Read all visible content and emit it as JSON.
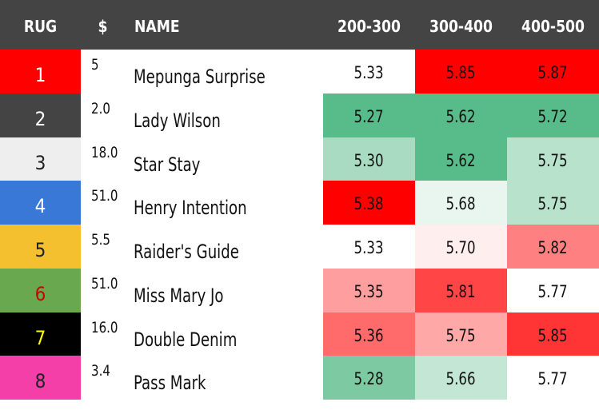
{
  "headers": {
    "rug": "RUG",
    "price": "$",
    "name": "NAME",
    "col1": "200-300",
    "col2": "300-400",
    "col3": "400-500"
  },
  "chart_data": {
    "type": "table",
    "columns": [
      "RUG",
      "$",
      "NAME",
      "200-300",
      "300-400",
      "400-500"
    ],
    "rows": [
      {
        "rug": "1",
        "price": "5",
        "name": "Mepunga Surprise",
        "values": [
          "5.33",
          "5.85",
          "5.87"
        ]
      },
      {
        "rug": "2",
        "price": "2.0",
        "name": "Lady Wilson",
        "values": [
          "5.27",
          "5.62",
          "5.72"
        ]
      },
      {
        "rug": "3",
        "price": "18.0",
        "name": "Star Stay",
        "values": [
          "5.30",
          "5.62",
          "5.75"
        ]
      },
      {
        "rug": "4",
        "price": "51.0",
        "name": "Henry Intention",
        "values": [
          "5.38",
          "5.68",
          "5.75"
        ]
      },
      {
        "rug": "5",
        "price": "5.5",
        "name": "Raider's Guide",
        "values": [
          "5.33",
          "5.70",
          "5.82"
        ]
      },
      {
        "rug": "6",
        "price": "51.0",
        "name": "Miss Mary Jo",
        "values": [
          "5.35",
          "5.81",
          "5.77"
        ]
      },
      {
        "rug": "7",
        "price": "16.0",
        "name": "Double Denim",
        "values": [
          "5.36",
          "5.75",
          "5.85"
        ]
      },
      {
        "rug": "8",
        "price": "3.4",
        "name": "Pass Mark",
        "values": [
          "5.28",
          "5.66",
          "5.77"
        ]
      }
    ],
    "rug_colors": [
      {
        "bg": "#ff0000",
        "fg": "#ffffff"
      },
      {
        "bg": "#444444",
        "fg": "#ffffff"
      },
      {
        "bg": "#eeeeee",
        "fg": "#222222"
      },
      {
        "bg": "#3a78d8",
        "fg": "#ffffff"
      },
      {
        "bg": "#f4c030",
        "fg": "#222222"
      },
      {
        "bg": "#6aa84f",
        "fg": "#cc0000"
      },
      {
        "bg": "#000000",
        "fg": "#ffff00"
      },
      {
        "bg": "#f43ea8",
        "fg": "#222222"
      }
    ],
    "cell_colors": [
      [
        "#ffffff",
        "#ff0000",
        "#ff0000"
      ],
      [
        "#57bb8a",
        "#57bb8a",
        "#57bb8a"
      ],
      [
        "#a8dbc1",
        "#57bb8a",
        "#b9e2cc"
      ],
      [
        "#ff0000",
        "#e8f6ef",
        "#b9e2cc"
      ],
      [
        "#ffffff",
        "#ffeeee",
        "#ff8080"
      ],
      [
        "#ff9e9e",
        "#ff4545",
        "#ffffff"
      ],
      [
        "#ff6a6a",
        "#ffa8a8",
        "#ff3535"
      ],
      [
        "#7cc9a2",
        "#c4e7d5",
        "#ffffff"
      ]
    ]
  }
}
